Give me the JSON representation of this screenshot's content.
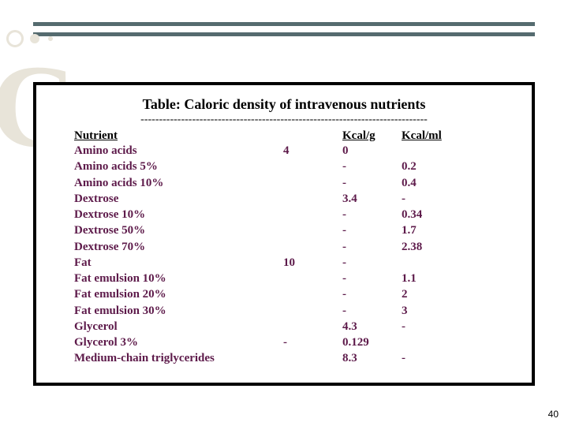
{
  "title": "Table:  Caloric density of intravenous nutrients",
  "dotted_line": "------------------------------------------------------------------------------",
  "headers": {
    "nutrient": "Nutrient",
    "mid": "",
    "kcal_g": "Kcal/g",
    "kcal_ml": "Kcal/ml"
  },
  "rows": [
    {
      "name": "Amino acids",
      "mid": "4",
      "kcal_g": "0",
      "kcal_ml": ""
    },
    {
      "name": "Amino acids 5%",
      "mid": "",
      "kcal_g": "-",
      "kcal_ml": "0.2"
    },
    {
      "name": "Amino acids 10%",
      "mid": "",
      "kcal_g": "-",
      "kcal_ml": "0.4"
    },
    {
      "name": "Dextrose",
      "mid": "",
      "kcal_g": "3.4",
      "kcal_ml": "-"
    },
    {
      "name": "Dextrose 10%",
      "mid": "",
      "kcal_g": "-",
      "kcal_ml": "0.34"
    },
    {
      "name": "Dextrose 50%",
      "mid": "",
      "kcal_g": "-",
      "kcal_ml": "1.7"
    },
    {
      "name": "Dextrose 70%",
      "mid": "",
      "kcal_g": "-",
      "kcal_ml": "2.38"
    },
    {
      "name": "Fat",
      "mid": "10",
      "kcal_g": "-",
      "kcal_ml": ""
    },
    {
      "name": "Fat emulsion 10%",
      "mid": "",
      "kcal_g": "-",
      "kcal_ml": "1.1"
    },
    {
      "name": "Fat emulsion 20%",
      "mid": "",
      "kcal_g": "-",
      "kcal_ml": "2"
    },
    {
      "name": "Fat emulsion 30%",
      "mid": "",
      "kcal_g": "-",
      "kcal_ml": "3"
    },
    {
      "name": "Glycerol",
      "mid": "",
      "kcal_g": "4.3",
      "kcal_ml": "-"
    },
    {
      "name": "Glycerol 3%",
      "mid": "-",
      "kcal_g": "0.129",
      "kcal_ml": ""
    },
    {
      "name": "Medium-chain triglycerides",
      "mid": "",
      "kcal_g": "8.3",
      "kcal_ml": "-"
    }
  ],
  "page_number": "40",
  "colors": {
    "rule": "#556b6f",
    "box_border": "#000000",
    "data_text": "#5d1a4a",
    "decor": "#e8e4d9"
  }
}
